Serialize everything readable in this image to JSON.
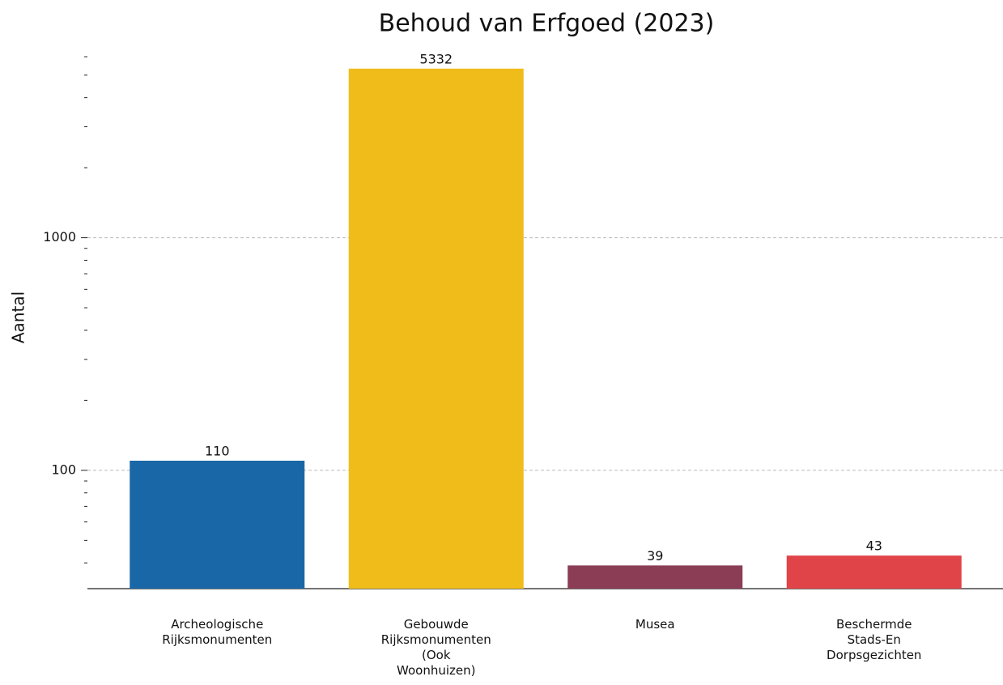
{
  "chart_data": {
    "type": "bar",
    "title": "Behoud van Erfgoed (2023)",
    "ylabel": "Aantal",
    "categories": [
      "Archeologische\nRijksmonumenten",
      "Gebouwde\nRijksmonumenten\n(Ook\nWoonhuizen)",
      "Musea",
      "Beschermde\nStads-En\nDorpsgezichten"
    ],
    "values": [
      110,
      5332,
      39,
      43
    ],
    "colors": [
      "#1a67a8",
      "#efbc1a",
      "#8a3d55",
      "#e04448"
    ],
    "log_scale": true,
    "ylim": [
      31,
      6400
    ],
    "yticks": [
      100,
      1000
    ],
    "yminorticks": [
      40,
      50,
      60,
      70,
      80,
      90,
      200,
      300,
      400,
      500,
      600,
      700,
      800,
      900,
      2000,
      3000,
      4000,
      5000,
      6000
    ],
    "grid": true
  }
}
